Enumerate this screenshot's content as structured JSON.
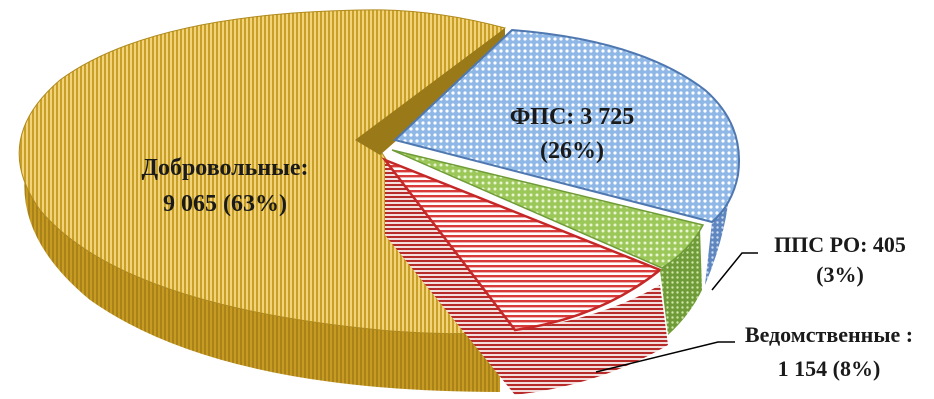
{
  "chart_data": {
    "type": "pie",
    "title": "",
    "slices": [
      {
        "name": "ФПС",
        "value": 3725,
        "percent": 26,
        "color": "#6f9fd8",
        "pattern": "dots",
        "exploded": true,
        "label_line1": "ФПС: 3 725",
        "label_line2": "(26%)"
      },
      {
        "name": "ППС РО",
        "value": 405,
        "percent": 3,
        "color": "#8db84a",
        "pattern": "dots",
        "exploded": true,
        "label_line1": "ППС  РО: 405",
        "label_line2": "(3%)"
      },
      {
        "name": "Ведомственные",
        "value": 1154,
        "percent": 8,
        "color": "#d93a3a",
        "pattern": "stripes",
        "exploded": true,
        "label_line1": "Ведомственные :",
        "label_line2": "1 154 (8%)"
      },
      {
        "name": "Добровольные",
        "value": 9065,
        "percent": 63,
        "color": "#d9b23a",
        "pattern": "vstripes",
        "exploded": false,
        "label_line1": "Добровольные:",
        "label_line2": "9 065 (63%)"
      }
    ]
  }
}
